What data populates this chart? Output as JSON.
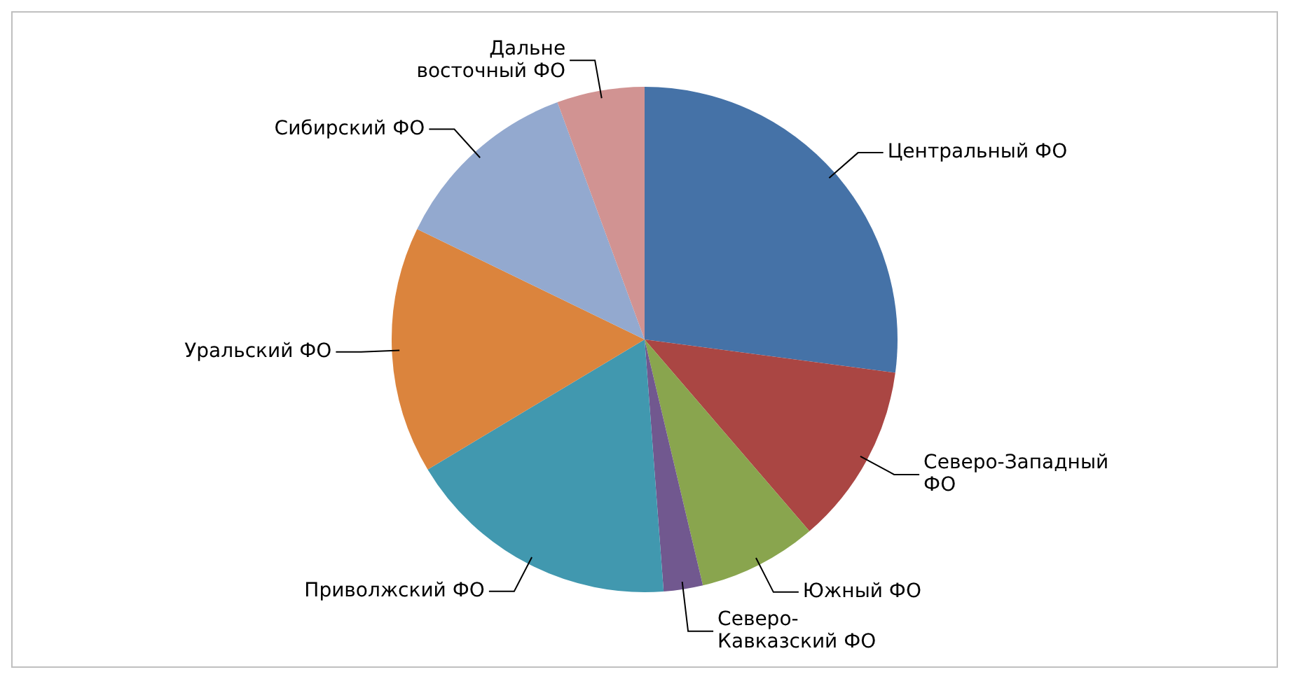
{
  "chart_data": {
    "type": "pie",
    "categories": [
      "Центральный ФО",
      "Северо-Западный\nФО",
      "Южный ФО",
      "Северо-\nКавказский ФО",
      "Приволжский ФО",
      "Уральский ФО",
      "Сибирский ФО",
      "Дальне\nвосточный ФО"
    ],
    "values": [
      27.1,
      11.6,
      7.6,
      2.5,
      17.6,
      15.8,
      12.2,
      5.6
    ],
    "colors": [
      "#4572a7",
      "#aa4643",
      "#89a54e",
      "#71588f",
      "#4198af",
      "#db843d",
      "#93a9cf",
      "#d19392"
    ],
    "legend": false
  }
}
